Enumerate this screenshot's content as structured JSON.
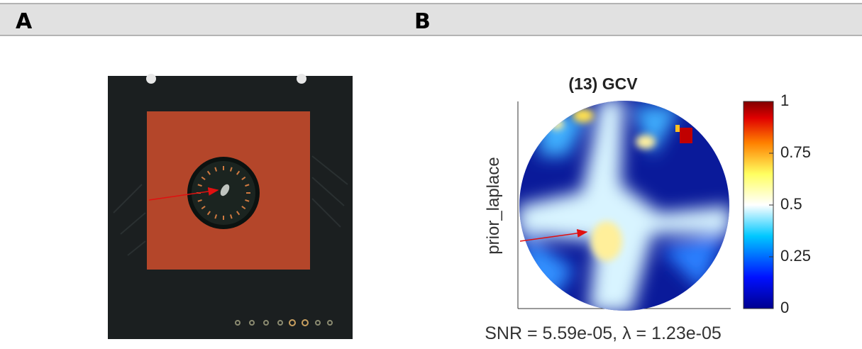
{
  "header": {
    "panel_a": "A",
    "panel_b": "B"
  },
  "panel_b": {
    "title": "(13) GCV",
    "ylabel": "prior_laplace",
    "colorbar_ticks": [
      0,
      0.25,
      0.5,
      0.75,
      1
    ],
    "caption": "SNR = 5.59e-05, λ = 1.23e-05"
  }
}
